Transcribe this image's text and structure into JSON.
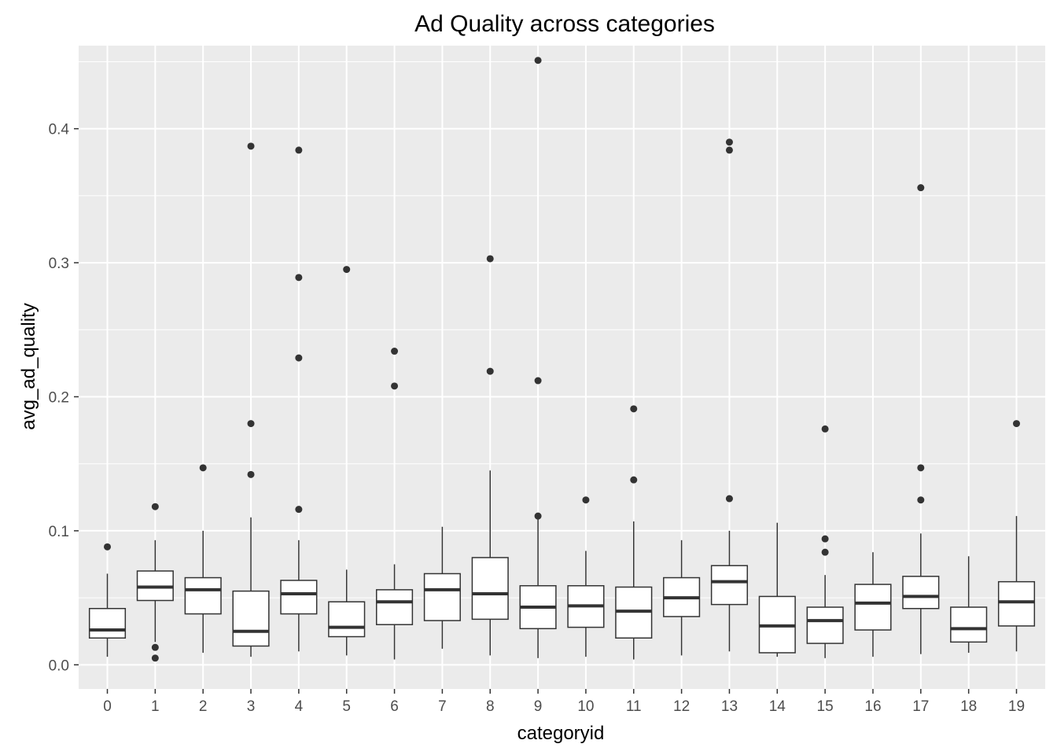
{
  "chart_data": {
    "type": "boxplot",
    "title": "Ad Quality across categories",
    "xlabel": "categoryid",
    "ylabel": "avg_ad_quality",
    "ylim": [
      -0.018,
      0.462
    ],
    "yticks": [
      0.0,
      0.1,
      0.2,
      0.3,
      0.4
    ],
    "ytick_labels": [
      "0.0",
      "0.1",
      "0.2",
      "0.3",
      "0.4"
    ],
    "grid": true,
    "panel_background": "#ebebeb",
    "grid_color": "#ffffff",
    "box_stroke": "#333333",
    "box_fill": "#ffffff",
    "categories": [
      "0",
      "1",
      "2",
      "3",
      "4",
      "5",
      "6",
      "7",
      "8",
      "9",
      "10",
      "11",
      "12",
      "13",
      "14",
      "15",
      "16",
      "17",
      "18",
      "19"
    ],
    "boxes": [
      {
        "category": "0",
        "whisker_low": 0.006,
        "q1": 0.02,
        "median": 0.026,
        "q3": 0.042,
        "whisker_high": 0.068,
        "outliers": [
          0.088
        ]
      },
      {
        "category": "1",
        "whisker_low": 0.017,
        "q1": 0.048,
        "median": 0.058,
        "q3": 0.07,
        "whisker_high": 0.093,
        "outliers": [
          0.118,
          0.013,
          0.005
        ]
      },
      {
        "category": "2",
        "whisker_low": 0.009,
        "q1": 0.038,
        "median": 0.056,
        "q3": 0.065,
        "whisker_high": 0.1,
        "outliers": [
          0.147
        ]
      },
      {
        "category": "3",
        "whisker_low": 0.006,
        "q1": 0.014,
        "median": 0.025,
        "q3": 0.055,
        "whisker_high": 0.11,
        "outliers": [
          0.387,
          0.18,
          0.142
        ]
      },
      {
        "category": "4",
        "whisker_low": 0.01,
        "q1": 0.038,
        "median": 0.053,
        "q3": 0.063,
        "whisker_high": 0.093,
        "outliers": [
          0.384,
          0.289,
          0.229,
          0.116
        ]
      },
      {
        "category": "5",
        "whisker_low": 0.007,
        "q1": 0.021,
        "median": 0.028,
        "q3": 0.047,
        "whisker_high": 0.071,
        "outliers": [
          0.295
        ]
      },
      {
        "category": "6",
        "whisker_low": 0.004,
        "q1": 0.03,
        "median": 0.047,
        "q3": 0.056,
        "whisker_high": 0.075,
        "outliers": [
          0.234,
          0.208
        ]
      },
      {
        "category": "7",
        "whisker_low": 0.012,
        "q1": 0.033,
        "median": 0.056,
        "q3": 0.068,
        "whisker_high": 0.103,
        "outliers": []
      },
      {
        "category": "8",
        "whisker_low": 0.007,
        "q1": 0.034,
        "median": 0.053,
        "q3": 0.08,
        "whisker_high": 0.145,
        "outliers": [
          0.303,
          0.219
        ]
      },
      {
        "category": "9",
        "whisker_low": 0.005,
        "q1": 0.027,
        "median": 0.043,
        "q3": 0.059,
        "whisker_high": 0.109,
        "outliers": [
          0.451,
          0.212,
          0.111
        ]
      },
      {
        "category": "10",
        "whisker_low": 0.006,
        "q1": 0.028,
        "median": 0.044,
        "q3": 0.059,
        "whisker_high": 0.085,
        "outliers": [
          0.123
        ]
      },
      {
        "category": "11",
        "whisker_low": 0.004,
        "q1": 0.02,
        "median": 0.04,
        "q3": 0.058,
        "whisker_high": 0.107,
        "outliers": [
          0.191,
          0.138
        ]
      },
      {
        "category": "12",
        "whisker_low": 0.007,
        "q1": 0.036,
        "median": 0.05,
        "q3": 0.065,
        "whisker_high": 0.093,
        "outliers": []
      },
      {
        "category": "13",
        "whisker_low": 0.01,
        "q1": 0.045,
        "median": 0.062,
        "q3": 0.074,
        "whisker_high": 0.1,
        "outliers": [
          0.39,
          0.384,
          0.124
        ]
      },
      {
        "category": "14",
        "whisker_low": 0.006,
        "q1": 0.009,
        "median": 0.029,
        "q3": 0.051,
        "whisker_high": 0.106,
        "outliers": []
      },
      {
        "category": "15",
        "whisker_low": 0.005,
        "q1": 0.016,
        "median": 0.033,
        "q3": 0.043,
        "whisker_high": 0.067,
        "outliers": [
          0.176,
          0.094,
          0.084
        ]
      },
      {
        "category": "16",
        "whisker_low": 0.006,
        "q1": 0.026,
        "median": 0.046,
        "q3": 0.06,
        "whisker_high": 0.084,
        "outliers": []
      },
      {
        "category": "17",
        "whisker_low": 0.008,
        "q1": 0.042,
        "median": 0.051,
        "q3": 0.066,
        "whisker_high": 0.098,
        "outliers": [
          0.356,
          0.147,
          0.123
        ]
      },
      {
        "category": "18",
        "whisker_low": 0.009,
        "q1": 0.017,
        "median": 0.027,
        "q3": 0.043,
        "whisker_high": 0.081,
        "outliers": []
      },
      {
        "category": "19",
        "whisker_low": 0.01,
        "q1": 0.029,
        "median": 0.047,
        "q3": 0.062,
        "whisker_high": 0.111,
        "outliers": [
          0.18
        ]
      }
    ]
  }
}
